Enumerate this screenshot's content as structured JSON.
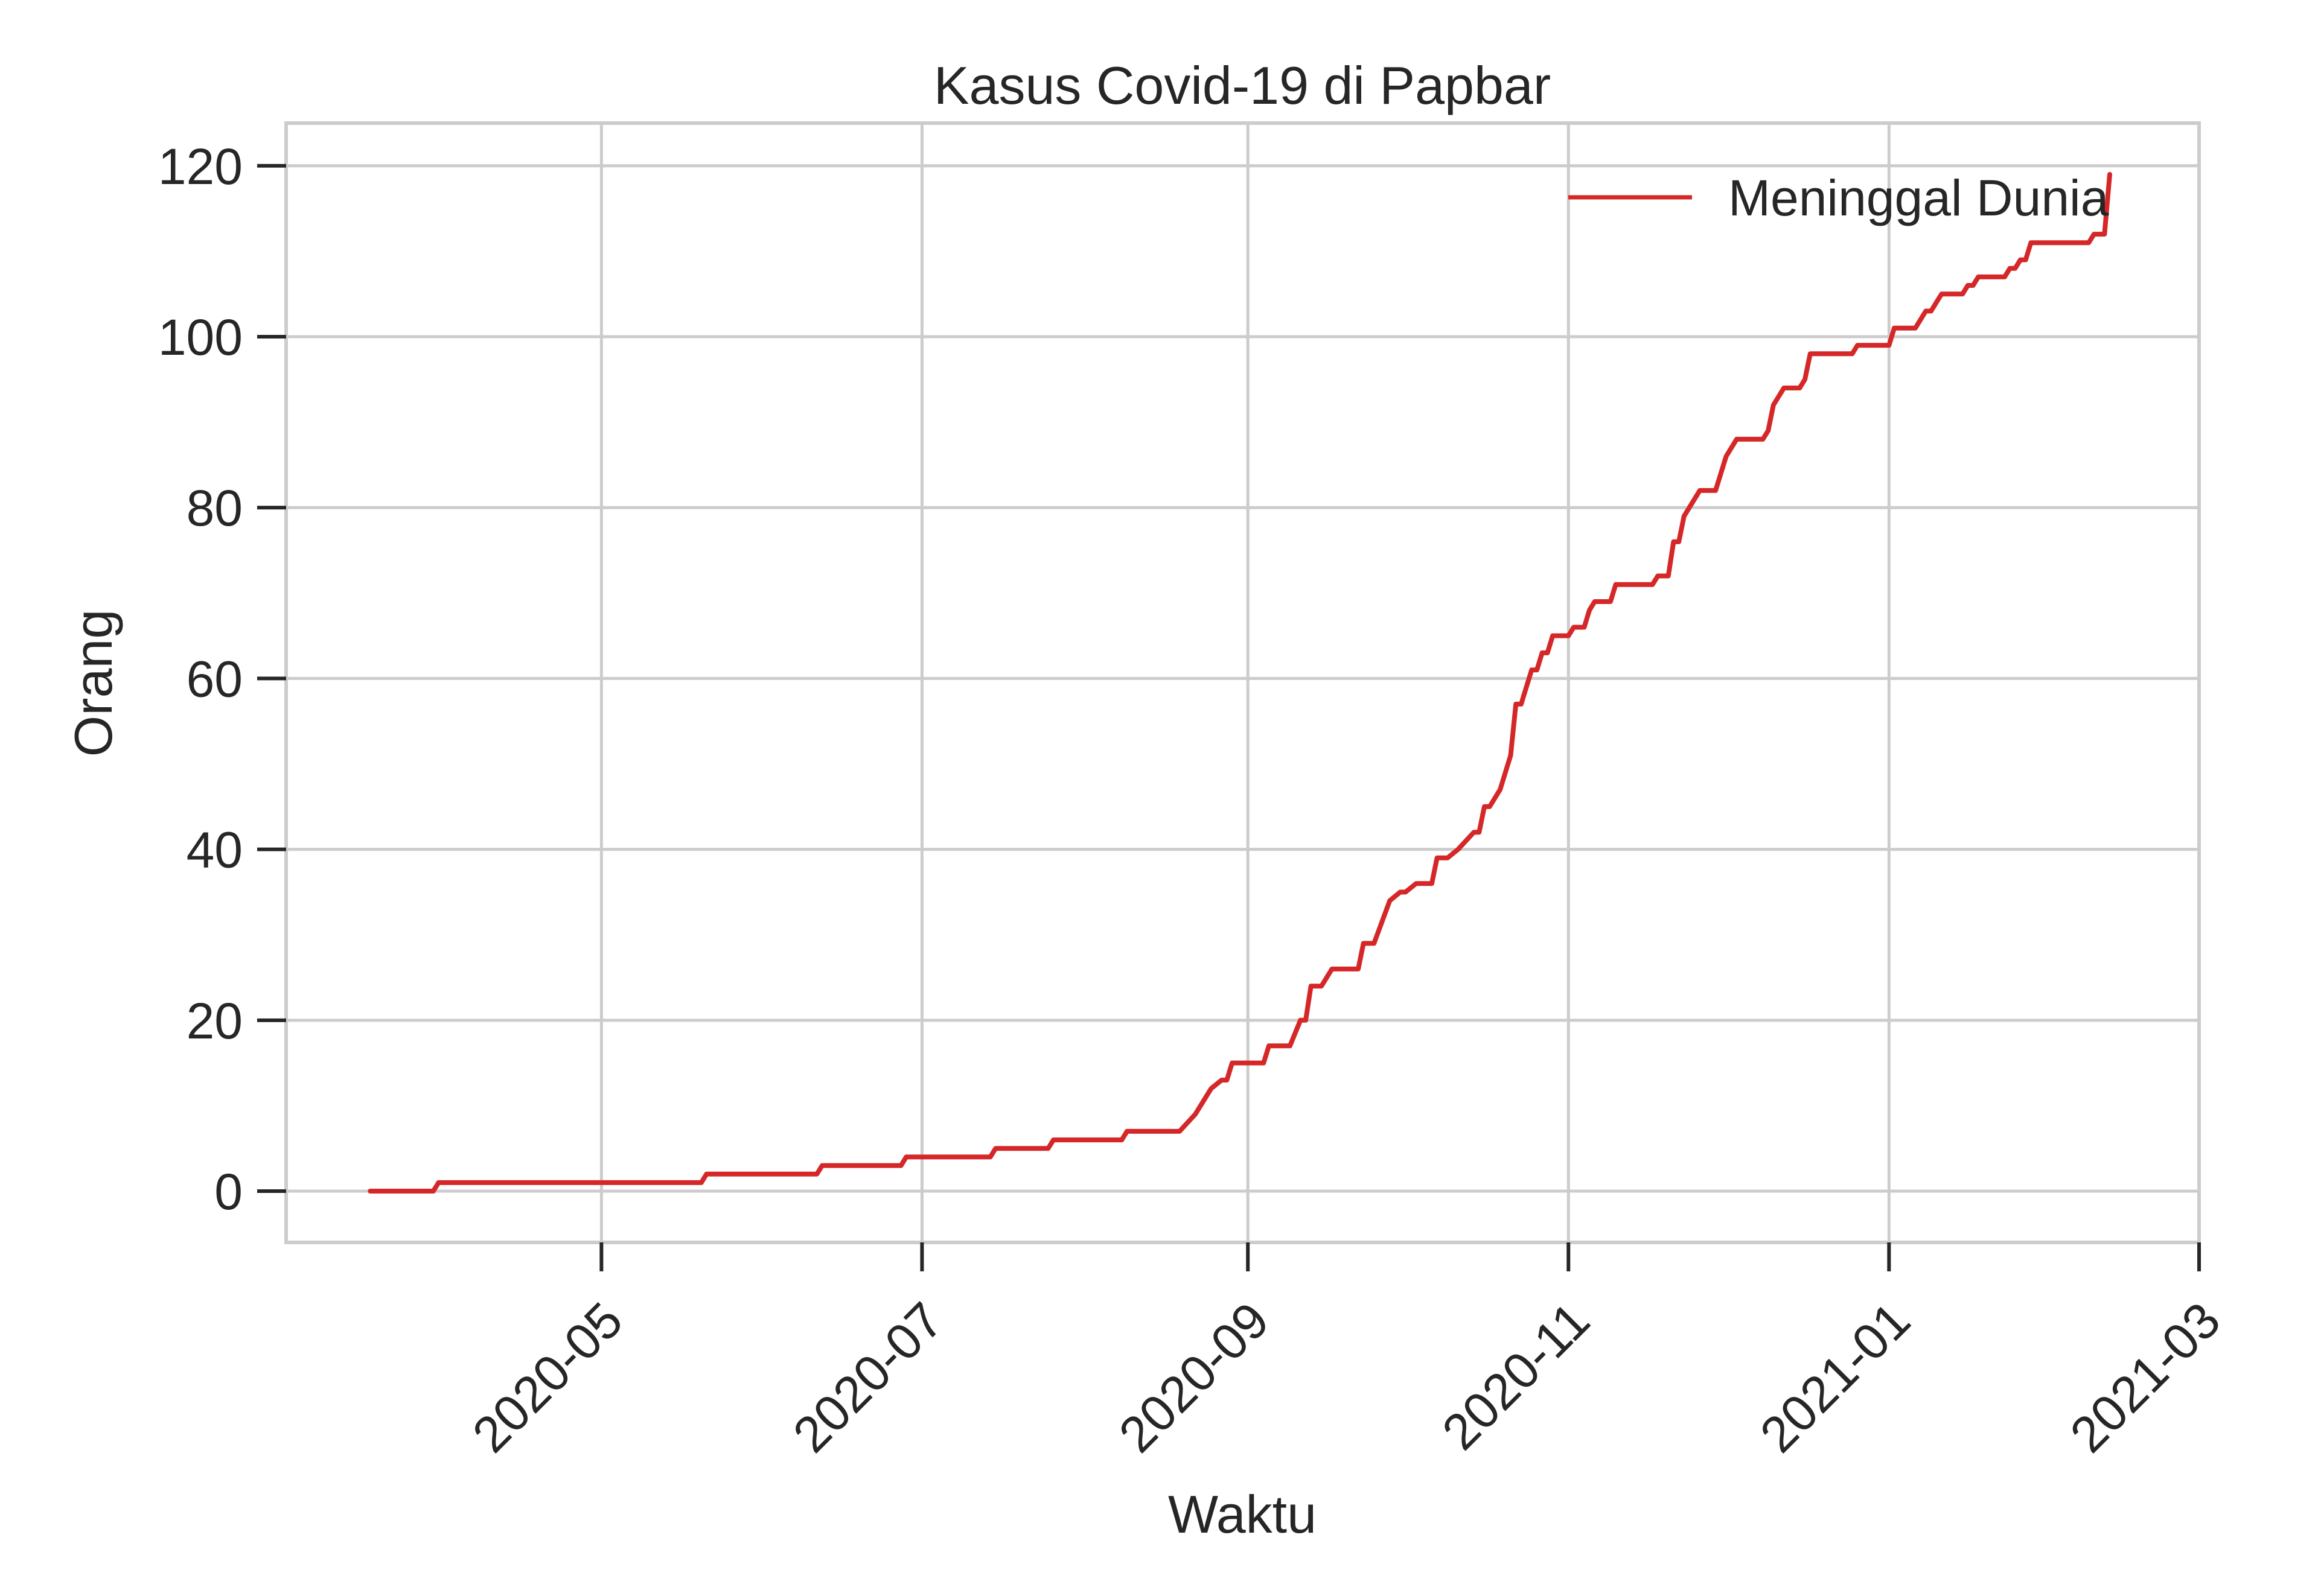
{
  "chart_data": {
    "type": "line",
    "title": "Kasus Covid-19 di Papbar",
    "xlabel": "Waktu",
    "ylabel": "Orang",
    "x_axis_type": "date",
    "xlim": [
      "2020-03-02",
      "2021-03-01"
    ],
    "ylim": [
      -6,
      125
    ],
    "y_ticks": [
      0,
      20,
      40,
      60,
      80,
      100,
      120
    ],
    "x_ticks": [
      "2020-05-01",
      "2020-07-01",
      "2020-09-01",
      "2020-11-01",
      "2021-01-01",
      "2021-03-01"
    ],
    "x_tick_labels": [
      "2020-05",
      "2020-07",
      "2020-09",
      "2020-11",
      "2021-01",
      "2021-03"
    ],
    "grid": true,
    "legend_position": "top-right",
    "series": [
      {
        "name": "Meninggal Dunia",
        "color": "#d62728",
        "points": [
          [
            "2020-03-18",
            0
          ],
          [
            "2020-03-30",
            0
          ],
          [
            "2020-03-31",
            1
          ],
          [
            "2020-05-20",
            1
          ],
          [
            "2020-05-21",
            2
          ],
          [
            "2020-06-11",
            2
          ],
          [
            "2020-06-12",
            3
          ],
          [
            "2020-06-27",
            3
          ],
          [
            "2020-06-28",
            4
          ],
          [
            "2020-07-14",
            4
          ],
          [
            "2020-07-15",
            5
          ],
          [
            "2020-07-25",
            5
          ],
          [
            "2020-07-26",
            6
          ],
          [
            "2020-08-08",
            6
          ],
          [
            "2020-08-09",
            7
          ],
          [
            "2020-08-19",
            7
          ],
          [
            "2020-08-22",
            9
          ],
          [
            "2020-08-25",
            12
          ],
          [
            "2020-08-27",
            13
          ],
          [
            "2020-08-28",
            13
          ],
          [
            "2020-08-29",
            15
          ],
          [
            "2020-09-04",
            15
          ],
          [
            "2020-09-05",
            17
          ],
          [
            "2020-09-09",
            17
          ],
          [
            "2020-09-11",
            20
          ],
          [
            "2020-09-12",
            20
          ],
          [
            "2020-09-13",
            24
          ],
          [
            "2020-09-15",
            24
          ],
          [
            "2020-09-17",
            26
          ],
          [
            "2020-09-22",
            26
          ],
          [
            "2020-09-23",
            29
          ],
          [
            "2020-09-25",
            29
          ],
          [
            "2020-09-28",
            34
          ],
          [
            "2020-09-30",
            35
          ],
          [
            "2020-10-01",
            35
          ],
          [
            "2020-10-03",
            36
          ],
          [
            "2020-10-06",
            36
          ],
          [
            "2020-10-07",
            39
          ],
          [
            "2020-10-09",
            39
          ],
          [
            "2020-10-11",
            40
          ],
          [
            "2020-10-14",
            42
          ],
          [
            "2020-10-15",
            42
          ],
          [
            "2020-10-16",
            45
          ],
          [
            "2020-10-17",
            45
          ],
          [
            "2020-10-19",
            47
          ],
          [
            "2020-10-21",
            51
          ],
          [
            "2020-10-22",
            57
          ],
          [
            "2020-10-23",
            57
          ],
          [
            "2020-10-25",
            61
          ],
          [
            "2020-10-26",
            61
          ],
          [
            "2020-10-27",
            63
          ],
          [
            "2020-10-28",
            63
          ],
          [
            "2020-10-29",
            65
          ],
          [
            "2020-11-01",
            65
          ],
          [
            "2020-11-02",
            66
          ],
          [
            "2020-11-04",
            66
          ],
          [
            "2020-11-05",
            68
          ],
          [
            "2020-11-06",
            69
          ],
          [
            "2020-11-09",
            69
          ],
          [
            "2020-11-10",
            71
          ],
          [
            "2020-11-17",
            71
          ],
          [
            "2020-11-18",
            72
          ],
          [
            "2020-11-20",
            72
          ],
          [
            "2020-11-21",
            76
          ],
          [
            "2020-11-22",
            76
          ],
          [
            "2020-11-23",
            79
          ],
          [
            "2020-11-26",
            82
          ],
          [
            "2020-11-29",
            82
          ],
          [
            "2020-12-01",
            86
          ],
          [
            "2020-12-03",
            88
          ],
          [
            "2020-12-08",
            88
          ],
          [
            "2020-12-09",
            89
          ],
          [
            "2020-12-10",
            92
          ],
          [
            "2020-12-12",
            94
          ],
          [
            "2020-12-15",
            94
          ],
          [
            "2020-12-16",
            95
          ],
          [
            "2020-12-17",
            98
          ],
          [
            "2020-12-25",
            98
          ],
          [
            "2020-12-26",
            99
          ],
          [
            "2021-01-01",
            99
          ],
          [
            "2021-01-02",
            101
          ],
          [
            "2021-01-06",
            101
          ],
          [
            "2021-01-08",
            103
          ],
          [
            "2021-01-09",
            103
          ],
          [
            "2021-01-11",
            105
          ],
          [
            "2021-01-15",
            105
          ],
          [
            "2021-01-16",
            106
          ],
          [
            "2021-01-17",
            106
          ],
          [
            "2021-01-18",
            107
          ],
          [
            "2021-01-23",
            107
          ],
          [
            "2021-01-24",
            108
          ],
          [
            "2021-01-25",
            108
          ],
          [
            "2021-01-26",
            109
          ],
          [
            "2021-01-27",
            109
          ],
          [
            "2021-01-28",
            111
          ],
          [
            "2021-02-08",
            111
          ],
          [
            "2021-02-09",
            112
          ],
          [
            "2021-02-11",
            112
          ],
          [
            "2021-02-12",
            119
          ]
        ]
      }
    ]
  }
}
